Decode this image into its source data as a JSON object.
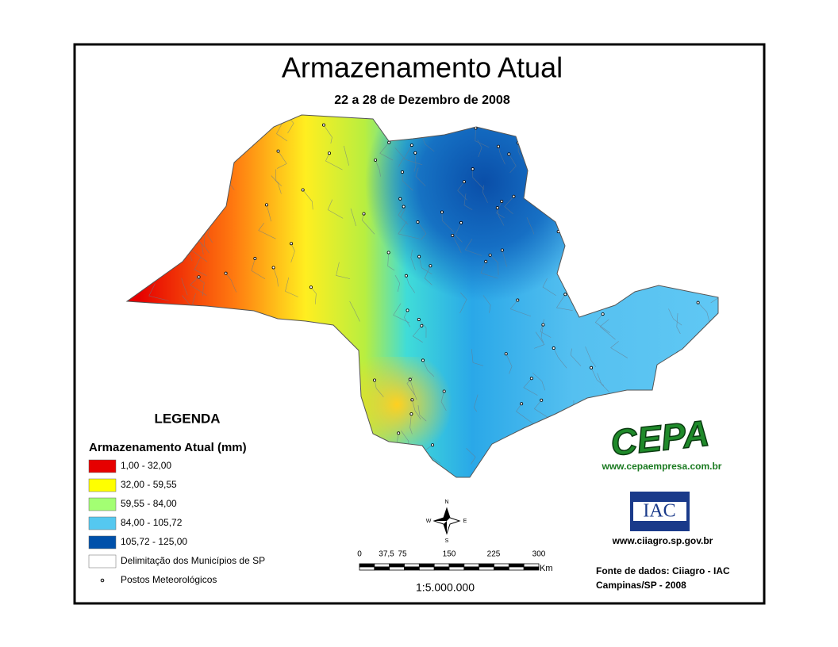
{
  "title": "Armazenamento Atual",
  "subtitle": "22 a 28 de Dezembro de 2008",
  "legend": {
    "heading": "LEGENDA",
    "title": "Armazenamento Atual (mm)",
    "items": [
      {
        "label": "1,00 - 32,00",
        "color": "#e60000"
      },
      {
        "label": "32,00 - 59,55",
        "color": "#ffff00"
      },
      {
        "label": "59,55 - 84,00",
        "color": "#a3ff73"
      },
      {
        "label": "84,00 - 105,72",
        "color": "#55c8f0"
      },
      {
        "label": "105,72 - 125,00",
        "color": "#0050aa"
      },
      {
        "label": "Delimitação dos Municípios de SP",
        "color": "#ffffff"
      },
      {
        "label": "Postos Meteorológicos"
      }
    ]
  },
  "compass": {
    "n": "N",
    "s": "S",
    "e": "E",
    "w": "W"
  },
  "scale_bar": {
    "ticks": [
      "0",
      "37,5",
      "75",
      "150",
      "225",
      "300"
    ],
    "unit": "Km",
    "ratio": "1:5.000.000"
  },
  "logos": {
    "cepa": "CEPA",
    "cepa_url": "www.cepaempresa.com.br",
    "iac": "IAC",
    "iac_url": "www.ciiagro.sp.gov.br"
  },
  "source": [
    "Fonte de dados: Ciiagro - IAC",
    "Campinas/SP - 2008"
  ]
}
